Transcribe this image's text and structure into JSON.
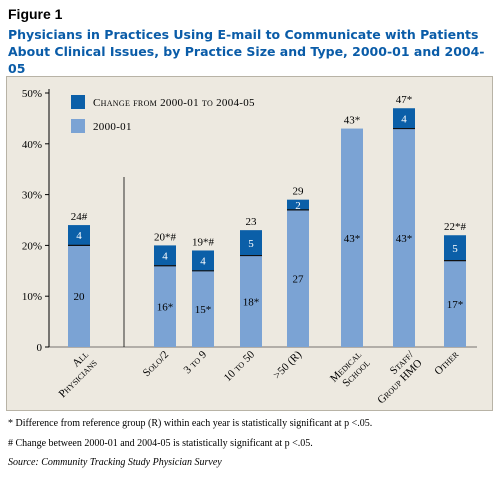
{
  "figure_label": "Figure 1",
  "title_line1": "Physicians in Practices Using E-mail to Communicate with Patients",
  "title_line2": "About Clinical Issues, by Practice Size and Type, 2000-01 and 2004-05",
  "notes": {
    "sig_ref": "* Difference from reference group (R) within each year is statistically significant at p <.05.",
    "sig_change": "# Change between 2000-01 and 2004-05 is statistically significant at p <.05.",
    "source": "Source: Community Tracking Study Physician Survey"
  },
  "colors": {
    "change": "#0b5fa8",
    "base": "#7ba3d4",
    "panel": "#ede9e0",
    "title": "#0a5ca8"
  },
  "chart_data": {
    "type": "bar",
    "stacked": true,
    "categories": [
      [
        "All",
        "Physicians"
      ],
      [
        "Solo/2"
      ],
      [
        "3 to 9"
      ],
      [
        "10 to 50"
      ],
      [
        ">50 (R)"
      ],
      [
        "Medical",
        "School"
      ],
      [
        "Staff/",
        "Group HMO"
      ],
      [
        "Other"
      ]
    ],
    "series": [
      {
        "name": "2000-01",
        "values": [
          20,
          16,
          15,
          18,
          27,
          43,
          43,
          17
        ],
        "labels": [
          "20",
          "16*",
          "15*",
          "18*",
          "27",
          "43*",
          "43*",
          "17*"
        ]
      },
      {
        "name": "Change from 2000-01 to 2004-05",
        "values": [
          4,
          4,
          4,
          5,
          2,
          0,
          4,
          5
        ],
        "labels": [
          "4",
          "4",
          "4",
          "5",
          "2",
          "",
          "4",
          "5"
        ]
      }
    ],
    "total_labels": [
      "24#",
      "20*#",
      "19*#",
      "23",
      "29",
      "43*",
      "47*",
      "22*#"
    ],
    "ylim": [
      0,
      50
    ],
    "yticks": [
      0,
      10,
      20,
      30,
      40,
      50
    ],
    "ytick_labels": [
      "0",
      "10%",
      "20%",
      "30%",
      "40%",
      "50%"
    ],
    "separator_after_category": 0,
    "legend_position": "top-left"
  }
}
